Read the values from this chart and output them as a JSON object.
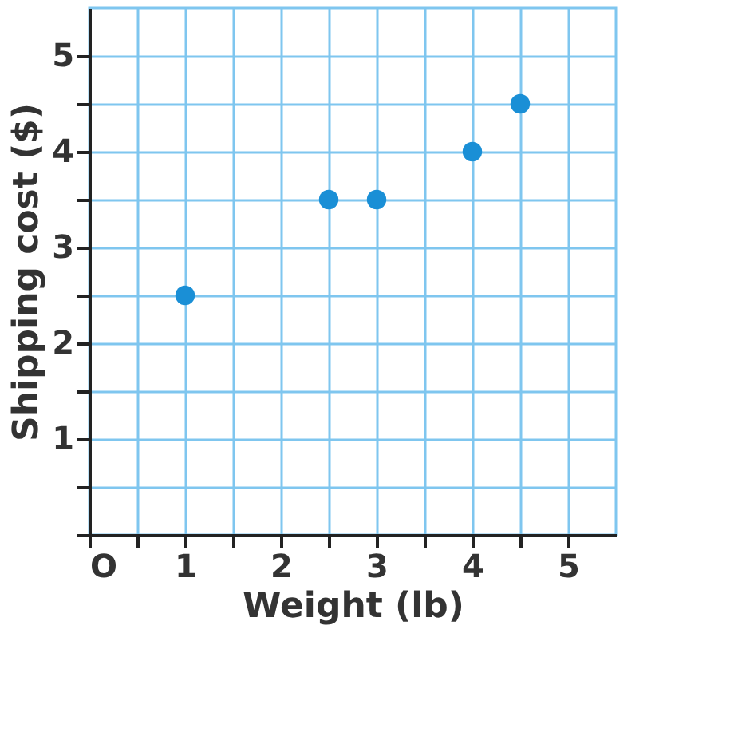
{
  "chart_data": {
    "type": "scatter",
    "xlabel": "Weight (lb)",
    "ylabel": "Shipping cost ($)",
    "x": [
      1,
      2.5,
      3,
      4,
      4.5
    ],
    "series": [
      {
        "color": "#1a8fd6",
        "values": [
          2.5,
          3.5,
          3.5,
          4,
          4.5
        ]
      }
    ],
    "xlim": [
      0,
      5.5
    ],
    "ylim": [
      0,
      5.5
    ],
    "xticks": [
      {
        "value": 0,
        "label": "O"
      },
      {
        "value": 0.5,
        "label": null
      },
      1,
      {
        "value": 1.5,
        "label": null
      },
      2,
      {
        "value": 2.5,
        "label": null
      },
      3,
      {
        "value": 3.5,
        "label": null
      },
      4,
      {
        "value": 4.5,
        "label": null
      },
      5
    ],
    "yticks": [
      {
        "value": 0,
        "label": null
      },
      {
        "value": 0.5,
        "label": null
      },
      1,
      {
        "value": 1.5,
        "label": null
      },
      2,
      {
        "value": 2.5,
        "label": null
      },
      3,
      {
        "value": 3.5,
        "label": null
      },
      4,
      {
        "value": 4.5,
        "label": null
      },
      5
    ],
    "grid": true,
    "marker": "circle"
  }
}
